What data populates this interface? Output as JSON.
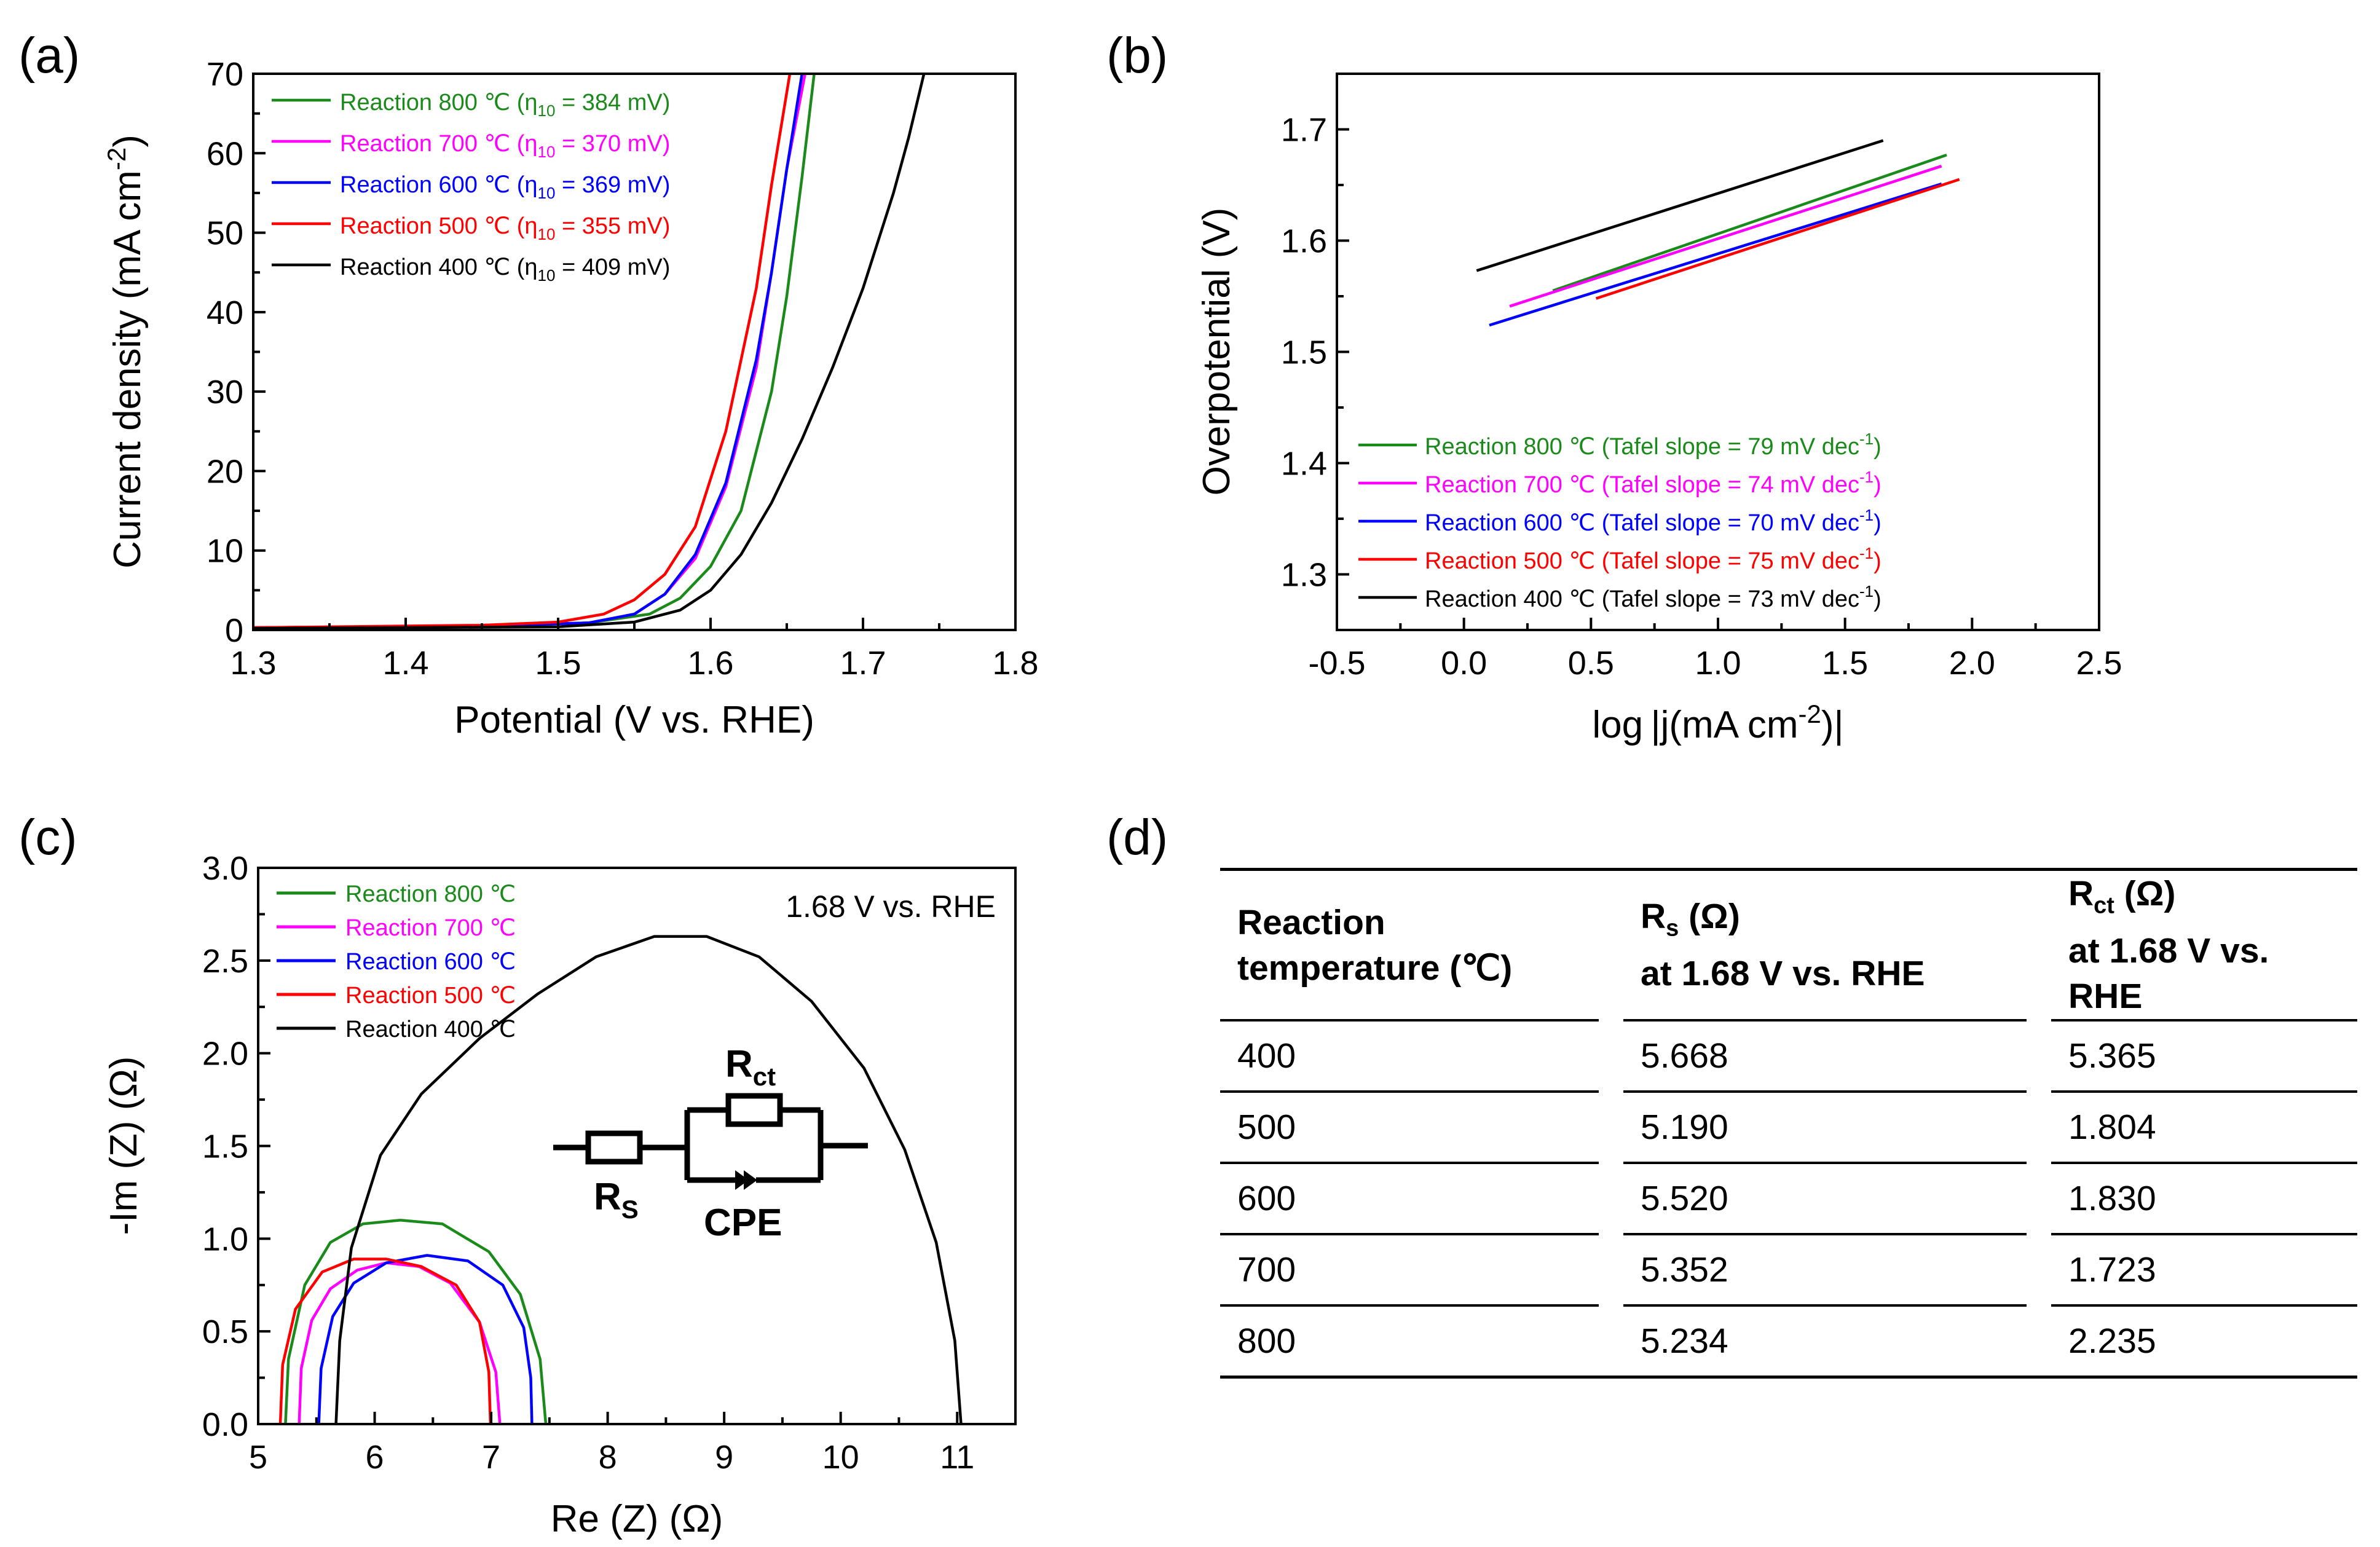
{
  "chart_data": [
    {
      "panel": "(a)",
      "type": "line",
      "xlabel": "Potential (V vs. RHE)",
      "ylabel": "Current density (mA cm",
      "ylabel_sup": "-2",
      "ylabel_close": ")",
      "xlim": [
        1.3,
        1.8
      ],
      "ylim": [
        0,
        70
      ],
      "xticks": [
        "1.3",
        "1.4",
        "1.5",
        "1.6",
        "1.7",
        "1.8"
      ],
      "yticks": [
        "0",
        "10",
        "20",
        "30",
        "40",
        "50",
        "60",
        "70"
      ],
      "legend_position": "top-left",
      "series": [
        {
          "name": "Reaction 800 ℃",
          "eta": "384 mV",
          "color": "#1a8a1a",
          "x": [
            1.3,
            1.45,
            1.52,
            1.56,
            1.58,
            1.6,
            1.62,
            1.64,
            1.65,
            1.66,
            1.668
          ],
          "y": [
            0.3,
            0.5,
            0.9,
            2.0,
            4.0,
            8.0,
            15.0,
            30.0,
            42.0,
            57.0,
            70.0
          ]
        },
        {
          "name": "Reaction 700 ℃",
          "eta": "370 mV",
          "color": "#ff00ff",
          "x": [
            1.3,
            1.45,
            1.52,
            1.55,
            1.57,
            1.59,
            1.61,
            1.63,
            1.64,
            1.65,
            1.662
          ],
          "y": [
            0.3,
            0.5,
            0.9,
            2.0,
            4.5,
            9.0,
            18.0,
            33.0,
            45.0,
            58.0,
            70.0
          ]
        },
        {
          "name": "Reaction 600 ℃",
          "eta": "369 mV",
          "color": "#0000ff",
          "x": [
            1.3,
            1.45,
            1.52,
            1.55,
            1.57,
            1.59,
            1.61,
            1.63,
            1.64,
            1.65,
            1.66
          ],
          "y": [
            0.3,
            0.5,
            0.9,
            2.0,
            4.5,
            9.5,
            18.5,
            34.0,
            45.0,
            58.0,
            70.0
          ]
        },
        {
          "name": "Reaction 500 ℃",
          "eta": "355 mV",
          "color": "#ff0000",
          "x": [
            1.3,
            1.45,
            1.5,
            1.53,
            1.55,
            1.57,
            1.59,
            1.61,
            1.63,
            1.64,
            1.652
          ],
          "y": [
            0.3,
            0.6,
            1.0,
            2.0,
            3.8,
            7.0,
            13.0,
            25.0,
            43.0,
            56.0,
            70.0
          ]
        },
        {
          "name": "Reaction 400 ℃",
          "eta": "409 mV",
          "color": "#000000",
          "x": [
            1.3,
            1.5,
            1.55,
            1.58,
            1.6,
            1.62,
            1.64,
            1.66,
            1.68,
            1.7,
            1.72,
            1.73,
            1.74
          ],
          "y": [
            0.2,
            0.4,
            1.0,
            2.5,
            5.0,
            9.5,
            16.0,
            24.0,
            33.0,
            43.0,
            55.0,
            62.0,
            70.0
          ]
        }
      ]
    },
    {
      "panel": "(b)",
      "type": "line",
      "xlabel_pre": "log",
      "xlabel_mid": "j(mA cm",
      "xlabel_sup": "-2",
      "xlabel_close": ")",
      "ylabel": "Overpotential (V)",
      "xlim": [
        -0.5,
        2.5
      ],
      "ylim": [
        1.25,
        1.75
      ],
      "xticks": [
        "-0.5",
        "0.0",
        "0.5",
        "1.0",
        "1.5",
        "2.0",
        "2.5"
      ],
      "yticks": [
        "1.3",
        "1.4",
        "1.5",
        "1.6",
        "1.7"
      ],
      "legend_position": "bottom-left",
      "series": [
        {
          "name": "Reaction 800 ℃",
          "tafel": "Tafel slope = 79 mV dec",
          "color": "#1a8a1a",
          "x": [
            0.35,
            1.9
          ],
          "y": [
            1.555,
            1.677
          ]
        },
        {
          "name": "Reaction 700 ℃",
          "tafel": "Tafel slope = 74 mV dec",
          "color": "#ff00ff",
          "x": [
            0.18,
            1.88
          ],
          "y": [
            1.541,
            1.667
          ]
        },
        {
          "name": "Reaction 600 ℃",
          "tafel": "Tafel slope = 70 mV dec",
          "color": "#0000ff",
          "x": [
            0.1,
            1.88
          ],
          "y": [
            1.524,
            1.651
          ]
        },
        {
          "name": "Reaction 500 ℃",
          "tafel": "Tafel slope = 75 mV dec",
          "color": "#ff0000",
          "x": [
            0.52,
            1.95
          ],
          "y": [
            1.548,
            1.655
          ]
        },
        {
          "name": "Reaction 400 ℃",
          "tafel": "Tafel slope = 73 mV dec",
          "color": "#000000",
          "x": [
            0.05,
            1.65
          ],
          "y": [
            1.573,
            1.69
          ]
        }
      ],
      "tafel_sup": "-1",
      "tafel_close": ")"
    },
    {
      "panel": "(c)",
      "type": "line",
      "xlabel": "Re (Z) (Ω)",
      "ylabel": "-Im (Z) (Ω)",
      "xlim": [
        5,
        11.5
      ],
      "ylim": [
        0,
        3.0
      ],
      "xticks": [
        "5",
        "6",
        "7",
        "8",
        "9",
        "10",
        "11"
      ],
      "yticks": [
        "0.0",
        "0.5",
        "1.0",
        "1.5",
        "2.0",
        "2.5",
        "3.0"
      ],
      "legend_position": "top-left",
      "annotation": "1.68 V vs. RHE",
      "circuit": {
        "rct": "R",
        "rct_sub": "ct",
        "rs": "R",
        "rs_sub": "S",
        "cpe": "CPE"
      },
      "series": [
        {
          "name": "Reaction 800 ℃",
          "color": "#1a8a1a",
          "x": [
            5.234,
            5.26,
            5.4,
            5.62,
            5.9,
            6.22,
            6.58,
            6.98,
            7.25,
            7.42,
            7.469
          ],
          "y": [
            0.0,
            0.35,
            0.75,
            0.98,
            1.08,
            1.1,
            1.08,
            0.93,
            0.7,
            0.35,
            0.0
          ]
        },
        {
          "name": "Reaction 700 ℃",
          "color": "#ff00ff",
          "x": [
            5.352,
            5.37,
            5.46,
            5.62,
            5.85,
            6.1,
            6.38,
            6.65,
            6.9,
            7.04,
            7.075
          ],
          "y": [
            0.0,
            0.3,
            0.56,
            0.73,
            0.83,
            0.87,
            0.85,
            0.76,
            0.55,
            0.28,
            0.0
          ]
        },
        {
          "name": "Reaction 600 ℃",
          "color": "#0000ff",
          "x": [
            5.52,
            5.54,
            5.64,
            5.82,
            6.1,
            6.45,
            6.8,
            7.1,
            7.28,
            7.34,
            7.35
          ],
          "y": [
            0.0,
            0.3,
            0.58,
            0.76,
            0.87,
            0.91,
            0.88,
            0.75,
            0.52,
            0.25,
            0.0
          ]
        },
        {
          "name": "Reaction 500 ℃",
          "color": "#ff0000",
          "x": [
            5.19,
            5.21,
            5.32,
            5.55,
            5.82,
            6.1,
            6.4,
            6.7,
            6.9,
            6.98,
            6.994
          ],
          "y": [
            0.0,
            0.32,
            0.62,
            0.82,
            0.89,
            0.89,
            0.85,
            0.75,
            0.55,
            0.28,
            0.0
          ]
        },
        {
          "name": "Reaction 400 ℃",
          "color": "#000000",
          "x": [
            5.668,
            5.7,
            5.8,
            6.05,
            6.4,
            6.9,
            7.4,
            7.9,
            8.4,
            8.85,
            9.3,
            9.75,
            10.2,
            10.55,
            10.82,
            10.98,
            11.033
          ],
          "y": [
            0.0,
            0.45,
            0.95,
            1.45,
            1.78,
            2.08,
            2.32,
            2.52,
            2.63,
            2.63,
            2.52,
            2.28,
            1.92,
            1.48,
            0.98,
            0.45,
            0.0
          ]
        }
      ]
    }
  ],
  "panel_labels": {
    "a": "(a)",
    "b": "(b)",
    "c": "(c)",
    "d": "(d)"
  },
  "legend_eta": {
    "eta": "η",
    "sub": "10",
    "eq": " = "
  },
  "table": {
    "headers": [
      {
        "line1": "Reaction",
        "line2": "temperature (℃)"
      },
      {
        "main": "R",
        "sub": "s",
        "after": " (Ω)",
        "line2": "at 1.68 V vs. RHE"
      },
      {
        "main": "R",
        "sub": "ct",
        "after": " (Ω)",
        "line2": "at 1.68 V vs. RHE"
      }
    ],
    "rows": [
      {
        "temp": "400",
        "rs": "5.668",
        "rct": "5.365"
      },
      {
        "temp": "500",
        "rs": "5.190",
        "rct": "1.804"
      },
      {
        "temp": "600",
        "rs": "5.520",
        "rct": "1.830"
      },
      {
        "temp": "700",
        "rs": "5.352",
        "rct": "1.723"
      },
      {
        "temp": "800",
        "rs": "5.234",
        "rct": "2.235"
      }
    ]
  }
}
